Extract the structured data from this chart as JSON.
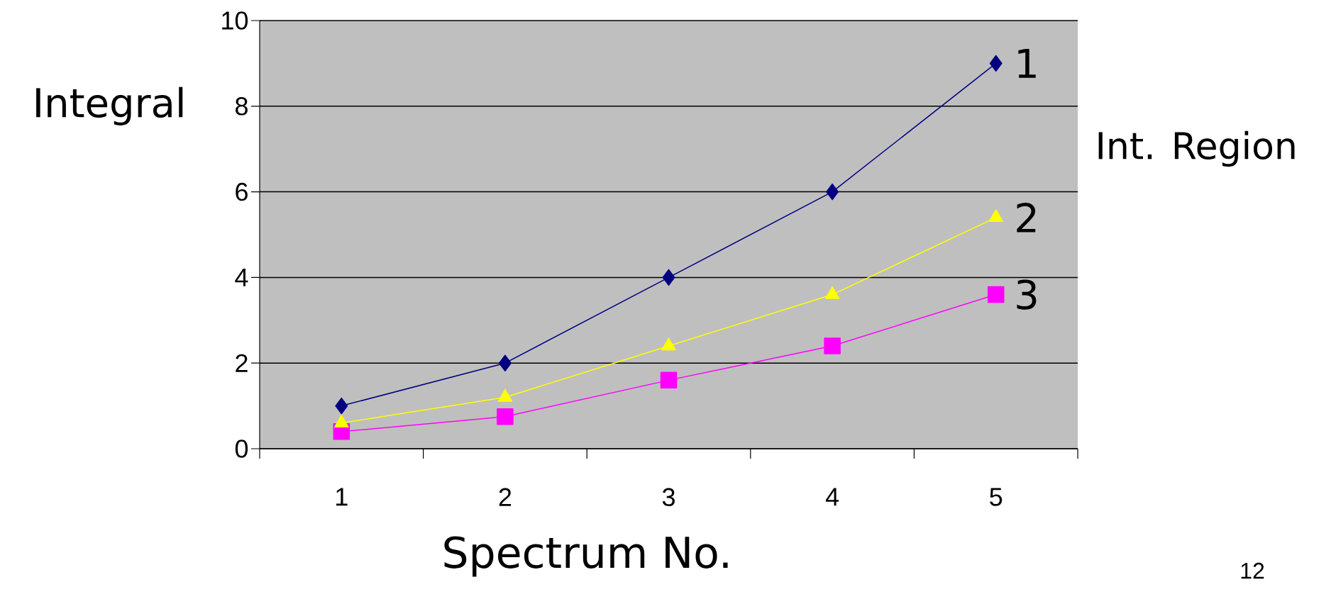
{
  "chart_data": {
    "type": "line",
    "xlabel": "Spectrum No.",
    "ylabel": "Integral",
    "legend_title": "Int. Region",
    "categories": [
      "1",
      "2",
      "3",
      "4",
      "5"
    ],
    "series": [
      {
        "name": "1",
        "color": "#000080",
        "marker": "diamond",
        "values": [
          1,
          2,
          4,
          6,
          9
        ]
      },
      {
        "name": "2",
        "color": "#ffff00",
        "marker": "triangle",
        "values": [
          0.6,
          1.2,
          2.4,
          3.6,
          5.4
        ]
      },
      {
        "name": "3",
        "color": "#ff00ff",
        "marker": "square",
        "values": [
          0.4,
          0.75,
          1.6,
          2.4,
          3.6
        ]
      }
    ],
    "ylim": [
      0,
      10
    ],
    "yticks": [
      0,
      2,
      4,
      6,
      8,
      10
    ],
    "grid": "y",
    "line_style": "solid",
    "annotations": [
      "12"
    ]
  }
}
